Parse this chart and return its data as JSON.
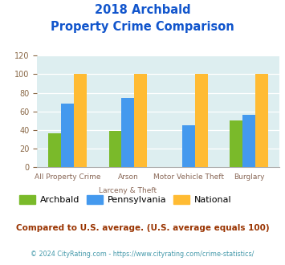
{
  "title_line1": "2018 Archbald",
  "title_line2": "Property Crime Comparison",
  "cat_labels_line1": [
    "All Property Crime",
    "Arson",
    "Motor Vehicle Theft",
    "Burglary"
  ],
  "cat_labels_line2": [
    "",
    "Larceny & Theft",
    "",
    ""
  ],
  "archbald": [
    36,
    39,
    0,
    50
  ],
  "pennsylvania": [
    68,
    74,
    45,
    56
  ],
  "national": [
    100,
    100,
    100,
    100
  ],
  "colors": {
    "archbald": "#7aba2a",
    "pennsylvania": "#4499ee",
    "national": "#ffbb33"
  },
  "ylim": [
    0,
    120
  ],
  "yticks": [
    0,
    20,
    40,
    60,
    80,
    100,
    120
  ],
  "title_color": "#1155cc",
  "legend_labels": [
    "Archbald",
    "Pennsylvania",
    "National"
  ],
  "footnote1": "Compared to U.S. average. (U.S. average equals 100)",
  "footnote2": "© 2024 CityRating.com - https://www.cityrating.com/crime-statistics/",
  "footnote1_color": "#993300",
  "footnote2_color": "#4499aa",
  "plot_bg_color": "#ddeef0"
}
